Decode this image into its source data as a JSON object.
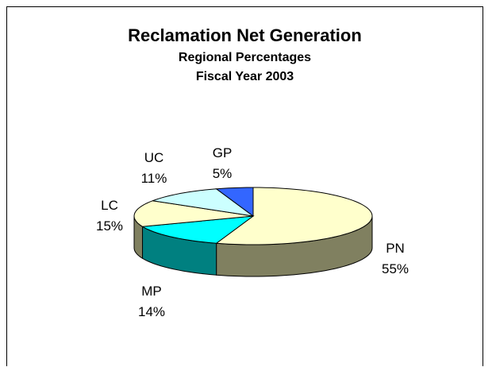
{
  "chart_data": {
    "type": "pie",
    "title": "Reclamation Net Generation",
    "subtitle": "Regional Percentages",
    "subtitle2": "Fiscal Year 2003",
    "three_d": true,
    "slices": [
      {
        "label": "PN",
        "percent_label": "55%",
        "value": 55,
        "color": "#ffffcc",
        "side_color": "#808060"
      },
      {
        "label": "MP",
        "percent_label": "14%",
        "value": 14,
        "color": "#00ffff",
        "side_color": "#008080"
      },
      {
        "label": "LC",
        "percent_label": "15%",
        "value": 15,
        "color": "#ffffcc",
        "side_color": "#808060"
      },
      {
        "label": "UC",
        "percent_label": "11%",
        "value": 11,
        "color": "#ccffff",
        "side_color": "#608080"
      },
      {
        "label": "GP",
        "percent_label": "5%",
        "value": 5,
        "color": "#3366ff",
        "side_color": "#1f3d99"
      }
    ]
  }
}
